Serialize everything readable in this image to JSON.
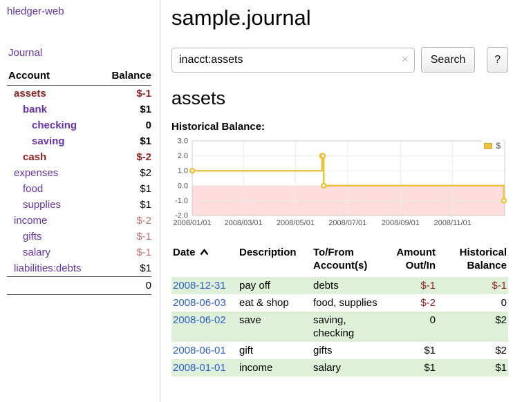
{
  "app": {
    "title": "hledger-web"
  },
  "colors": {
    "link_purple": "#6633aa",
    "negative_strong": "#8e1f1f",
    "negative_light": "#bf7171",
    "date_link_blue": "#2d5ecc",
    "row_stripe_green": "#dff0d8",
    "chart_line": "#EDC240",
    "chart_negative_region": "#ffdddd"
  },
  "sidebar": {
    "journal_link": "Journal",
    "account_header": "Account",
    "balance_header": "Balance",
    "accounts": [
      {
        "label": "assets",
        "balance": "$-1",
        "depth": 1,
        "inacct": true,
        "negative": true
      },
      {
        "label": "bank",
        "balance": "$1",
        "depth": 2,
        "inacct": true,
        "negative": false
      },
      {
        "label": "checking",
        "balance": "0",
        "depth": 3,
        "inacct": true,
        "negative": false
      },
      {
        "label": "saving",
        "balance": "$1",
        "depth": 3,
        "inacct": true,
        "negative": false
      },
      {
        "label": "cash",
        "balance": "$-2",
        "depth": 2,
        "inacct": true,
        "negative": true
      },
      {
        "label": "expenses",
        "balance": "$2",
        "depth": 1,
        "inacct": false,
        "negative": false
      },
      {
        "label": "food",
        "balance": "$1",
        "depth": 2,
        "inacct": false,
        "negative": false
      },
      {
        "label": "supplies",
        "balance": "$1",
        "depth": 2,
        "inacct": false,
        "negative": false
      },
      {
        "label": "income",
        "balance": "$-2",
        "depth": 1,
        "inacct": false,
        "negative": true
      },
      {
        "label": "gifts",
        "balance": "$-1",
        "depth": 2,
        "inacct": false,
        "negative": true
      },
      {
        "label": "salary",
        "balance": "$-1",
        "depth": 2,
        "inacct": false,
        "negative": true
      },
      {
        "label": "liabilities:debts",
        "balance": "$1",
        "depth": 1,
        "inacct": false,
        "negative": false
      }
    ],
    "total": "0"
  },
  "main": {
    "title": "sample.journal",
    "search": {
      "value": "inacct:assets",
      "clear_icon": "×",
      "search_button": "Search",
      "help_button": "?"
    },
    "account_heading": "assets",
    "chart_label": "Historical Balance:"
  },
  "chart_data": {
    "type": "line",
    "style": "step",
    "title": "Historical Balance",
    "series": [
      {
        "name": "$",
        "color": "#EDC240",
        "points": [
          [
            "2008-01-01",
            1
          ],
          [
            "2008-06-01",
            2
          ],
          [
            "2008-06-02",
            2
          ],
          [
            "2008-06-03",
            0
          ],
          [
            "2008-12-31",
            -1
          ]
        ]
      }
    ],
    "ylim": [
      -2,
      3
    ],
    "yticks": [
      3.0,
      2.0,
      1.0,
      0.0,
      -1.0,
      -2.0
    ],
    "xlim": [
      "2008-01-01",
      "2009-01-01"
    ],
    "xticks": [
      "2008/01/01",
      "2008/03/01",
      "2008/05/01",
      "2008/07/01",
      "2008/09/01",
      "2008/11/01"
    ],
    "negative_region_color": "#ffdddd",
    "grid": true,
    "legend": {
      "label": "$",
      "position": "top-right"
    }
  },
  "register": {
    "headers": [
      {
        "lines": [
          "Date"
        ],
        "align": "left",
        "sortable": true,
        "sort_icon": "chevron-up"
      },
      {
        "lines": [
          "Description"
        ],
        "align": "left"
      },
      {
        "lines": [
          "To/From",
          "Account(s)"
        ],
        "align": "left"
      },
      {
        "lines": [
          "Amount",
          "Out/In"
        ],
        "align": "right"
      },
      {
        "lines": [
          "Historical",
          "Balance"
        ],
        "align": "right"
      }
    ],
    "rows": [
      {
        "date": "2008-12-31",
        "description": "pay off",
        "accounts": "debts",
        "amount": "$-1",
        "balance": "$-1"
      },
      {
        "date": "2008-06-03",
        "description": "eat & shop",
        "accounts": "food, supplies",
        "amount": "$-2",
        "balance": "0"
      },
      {
        "date": "2008-06-02",
        "description": "save",
        "accounts": "saving, checking",
        "amount": "0",
        "balance": "$2"
      },
      {
        "date": "2008-06-01",
        "description": "gift",
        "accounts": "gifts",
        "amount": "$1",
        "balance": "$2"
      },
      {
        "date": "2008-01-01",
        "description": "income",
        "accounts": "salary",
        "amount": "$1",
        "balance": "$1"
      }
    ]
  }
}
